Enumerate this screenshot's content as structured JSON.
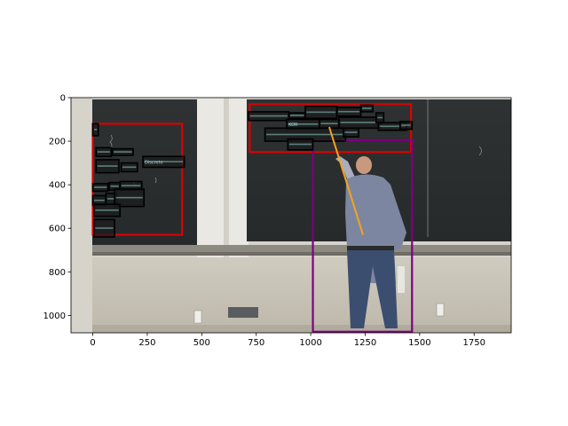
{
  "chart_data": {
    "type": "image-annotation",
    "image_size": [
      1920,
      1080
    ],
    "xlim": [
      -100,
      1920
    ],
    "ylim": [
      1080,
      0
    ],
    "xticks": [
      0,
      250,
      500,
      750,
      1000,
      1250,
      1500,
      1750
    ],
    "yticks": [
      0,
      200,
      400,
      600,
      800,
      1000
    ],
    "regions": [
      {
        "label": "left-board",
        "color": "#dd0000",
        "x0": 0,
        "y0": 120,
        "x1": 410,
        "y1": 630
      },
      {
        "label": "right-board",
        "color": "#dd0000",
        "x0": 720,
        "y0": 30,
        "x1": 1460,
        "y1": 250
      },
      {
        "label": "person",
        "color": "#800080",
        "x0": 1010,
        "y0": 195,
        "x1": 1465,
        "y1": 1075
      }
    ],
    "text_boxes": [
      {
        "x0": 0,
        "y0": 120,
        "x1": 25,
        "y1": 175,
        "text": ""
      },
      {
        "x0": 15,
        "y0": 230,
        "x1": 85,
        "y1": 270,
        "text": ""
      },
      {
        "x0": 90,
        "y0": 235,
        "x1": 185,
        "y1": 265,
        "text": ""
      },
      {
        "x0": 15,
        "y0": 285,
        "x1": 120,
        "y1": 345,
        "text": ""
      },
      {
        "x0": 130,
        "y0": 300,
        "x1": 205,
        "y1": 340,
        "text": ""
      },
      {
        "x0": 230,
        "y0": 270,
        "x1": 420,
        "y1": 320,
        "text": "Discrete"
      },
      {
        "x0": 0,
        "y0": 395,
        "x1": 70,
        "y1": 430,
        "text": ""
      },
      {
        "x0": 75,
        "y0": 390,
        "x1": 125,
        "y1": 425,
        "text": ""
      },
      {
        "x0": 125,
        "y0": 385,
        "x1": 225,
        "y1": 425,
        "text": ""
      },
      {
        "x0": 0,
        "y0": 450,
        "x1": 60,
        "y1": 495,
        "text": ""
      },
      {
        "x0": 60,
        "y0": 440,
        "x1": 110,
        "y1": 490,
        "text": ""
      },
      {
        "x0": 100,
        "y0": 420,
        "x1": 235,
        "y1": 500,
        "text": ""
      },
      {
        "x0": 5,
        "y0": 490,
        "x1": 125,
        "y1": 545,
        "text": ""
      },
      {
        "x0": 5,
        "y0": 560,
        "x1": 100,
        "y1": 640,
        "text": ""
      },
      {
        "x0": 715,
        "y0": 65,
        "x1": 900,
        "y1": 105,
        "text": ""
      },
      {
        "x0": 900,
        "y0": 70,
        "x1": 975,
        "y1": 95,
        "text": ""
      },
      {
        "x0": 975,
        "y0": 40,
        "x1": 1120,
        "y1": 95,
        "text": ""
      },
      {
        "x0": 1120,
        "y0": 45,
        "x1": 1230,
        "y1": 85,
        "text": ""
      },
      {
        "x0": 1230,
        "y0": 35,
        "x1": 1285,
        "y1": 65,
        "text": ""
      },
      {
        "x0": 890,
        "y0": 100,
        "x1": 1040,
        "y1": 145,
        "text": "KOR"
      },
      {
        "x0": 1040,
        "y0": 100,
        "x1": 1130,
        "y1": 140,
        "text": ""
      },
      {
        "x0": 1130,
        "y0": 90,
        "x1": 1320,
        "y1": 140,
        "text": ""
      },
      {
        "x0": 1300,
        "y0": 70,
        "x1": 1335,
        "y1": 115,
        "text": ""
      },
      {
        "x0": 1310,
        "y0": 115,
        "x1": 1440,
        "y1": 150,
        "text": ""
      },
      {
        "x0": 1410,
        "y0": 110,
        "x1": 1465,
        "y1": 145,
        "text": ""
      },
      {
        "x0": 790,
        "y0": 140,
        "x1": 1160,
        "y1": 200,
        "text": ""
      },
      {
        "x0": 1150,
        "y0": 140,
        "x1": 1220,
        "y1": 180,
        "text": ""
      },
      {
        "x0": 895,
        "y0": 190,
        "x1": 1010,
        "y1": 240,
        "text": ""
      }
    ],
    "pointer": {
      "color": "#f5a31a",
      "x0": 1085,
      "y0": 135,
      "x1": 1240,
      "y1": 630
    }
  }
}
